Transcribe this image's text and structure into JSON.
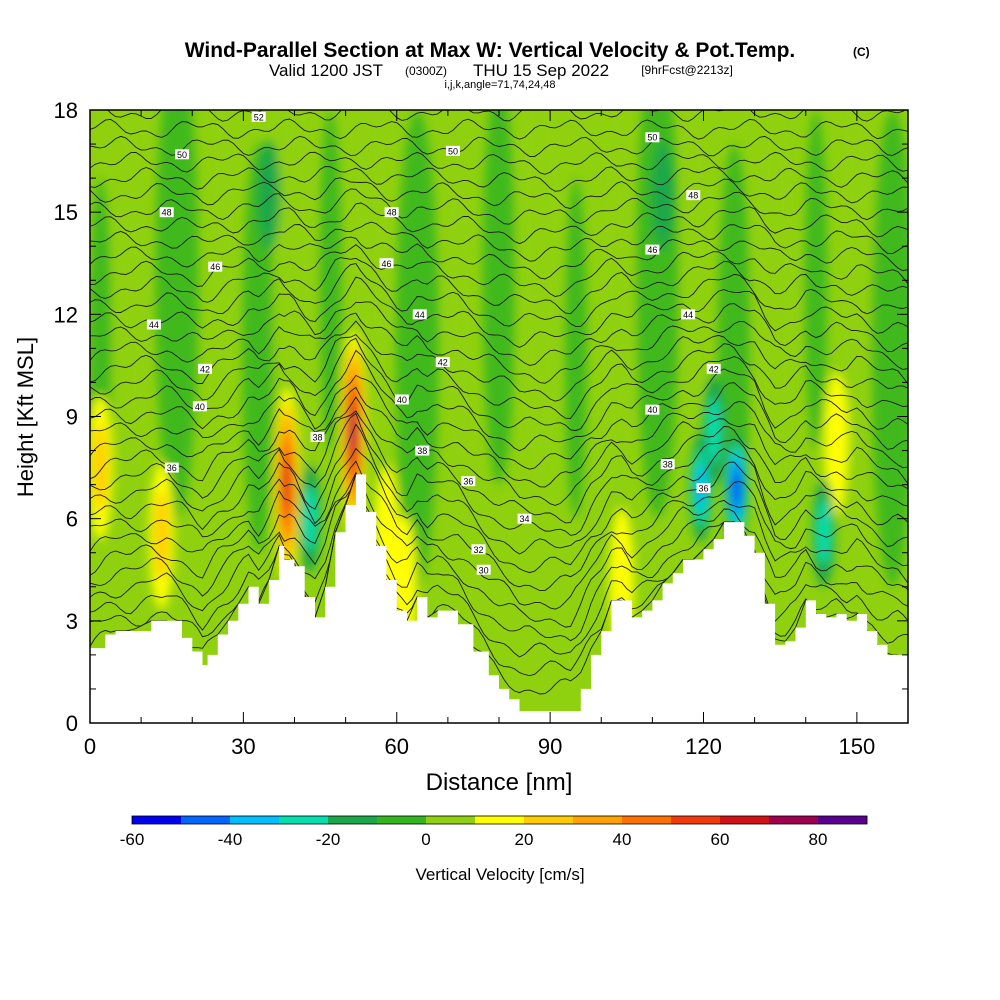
{
  "header": {
    "title": "Wind-Parallel Section at Max W: Vertical Velocity & Pot.Temp.",
    "title_units": "(C)",
    "valid_prefix": "Valid 1200 JST",
    "valid_utc": "(0300Z)",
    "valid_date": "THU 15 Sep 2022",
    "forecast": "[9hrFcst@2213z]",
    "indices": "i,j,k,angle=71,74,24,48"
  },
  "chart_data": {
    "type": "heatmap",
    "xlabel": "Distance [nm]",
    "ylabel": "Height [Kft MSL]",
    "xlim": [
      0,
      160
    ],
    "ylim": [
      0,
      18
    ],
    "x_ticks": [
      "0",
      "30",
      "60",
      "90",
      "120",
      "150"
    ],
    "x_tick_values": [
      0,
      30,
      60,
      90,
      120,
      150
    ],
    "y_ticks": [
      "0",
      "3",
      "6",
      "9",
      "12",
      "15",
      "18"
    ],
    "y_tick_values": [
      0,
      3,
      6,
      9,
      12,
      15,
      18
    ],
    "colorbar": {
      "label": "Vertical Velocity [cm/s]",
      "tick_labels": [
        "-60",
        "-40",
        "-20",
        "0",
        "20",
        "40",
        "60",
        "80"
      ],
      "tick_values": [
        -60,
        -40,
        -20,
        0,
        20,
        40,
        60,
        80
      ],
      "levels": [
        -60,
        -50,
        -40,
        -30,
        -20,
        -10,
        0,
        10,
        20,
        30,
        40,
        50,
        60,
        70,
        80,
        90
      ],
      "colors": [
        "#0000f0",
        "#0066ff",
        "#00bfff",
        "#00e0b0",
        "#1aa84a",
        "#33b520",
        "#8fd10e",
        "#ffff00",
        "#ffcc00",
        "#ffa200",
        "#ff7000",
        "#f03a0a",
        "#d21018",
        "#a00050",
        "#5a0090"
      ]
    },
    "terrain_kft": {
      "x": [
        0,
        3,
        5,
        8,
        12,
        15,
        18,
        20,
        22,
        23,
        25,
        27,
        29,
        31,
        33,
        35,
        37,
        38,
        39,
        40,
        42,
        44,
        46,
        48,
        50,
        52,
        54,
        56,
        58,
        60,
        62,
        64,
        66,
        68,
        72,
        75,
        78,
        80,
        82,
        84,
        86,
        88,
        90,
        92,
        94,
        96,
        98,
        100,
        102,
        104,
        106,
        108,
        110,
        112,
        114,
        116,
        118,
        120,
        122,
        124,
        126,
        128,
        130,
        132,
        134,
        136,
        138,
        140,
        142,
        144,
        146,
        148,
        150,
        152,
        154,
        156,
        158,
        160
      ],
      "h": [
        2.2,
        2.6,
        2.7,
        2.7,
        3.0,
        3.0,
        2.5,
        2.1,
        1.7,
        2.0,
        2.6,
        3.0,
        3.5,
        4.0,
        3.5,
        4.2,
        5.2,
        4.8,
        4.8,
        4.6,
        3.7,
        3.1,
        4.0,
        5.6,
        6.4,
        7.3,
        6.2,
        5.2,
        4.2,
        3.3,
        3.0,
        3.7,
        3.1,
        3.3,
        2.9,
        2.1,
        1.4,
        1.0,
        0.7,
        0.35,
        0.35,
        0.35,
        0.35,
        0.35,
        0.35,
        1.0,
        2.0,
        2.7,
        3.6,
        3.6,
        3.1,
        3.3,
        3.6,
        4.1,
        4.4,
        4.8,
        4.8,
        5.1,
        5.4,
        5.9,
        5.9,
        5.5,
        5.0,
        3.5,
        2.3,
        2.4,
        2.8,
        3.6,
        3.2,
        3.1,
        3.2,
        3.0,
        3.2,
        2.7,
        2.3,
        2.0,
        2.0,
        1.7
      ]
    },
    "updraft_cores": [
      {
        "x": 51.5,
        "z": 8.5,
        "peak_cm_s": 72
      },
      {
        "x": 38.5,
        "z": 7.0,
        "peak_cm_s": 62
      },
      {
        "x": 14.0,
        "z": 5.5,
        "peak_cm_s": 22
      },
      {
        "x": 2.0,
        "z": 7.5,
        "peak_cm_s": 20
      },
      {
        "x": 146.0,
        "z": 8.2,
        "peak_cm_s": 18
      },
      {
        "x": 104.0,
        "z": 4.2,
        "peak_cm_s": 18
      },
      {
        "x": 61.5,
        "z": 4.0,
        "peak_cm_s": 18
      },
      {
        "x": 58.0,
        "z": 5.5,
        "peak_cm_s": 16
      }
    ],
    "downdraft_cores": [
      {
        "x": 126.5,
        "z": 6.9,
        "min_cm_s": -50
      },
      {
        "x": 119.5,
        "z": 6.9,
        "min_cm_s": -30
      },
      {
        "x": 143.5,
        "z": 5.6,
        "min_cm_s": -25
      },
      {
        "x": 43.0,
        "z": 6.0,
        "min_cm_s": -25
      },
      {
        "x": 122.0,
        "z": 8.6,
        "min_cm_s": -20
      },
      {
        "x": 35.0,
        "z": 15.5,
        "min_cm_s": -15
      },
      {
        "x": 112.0,
        "z": 15.5,
        "min_cm_s": -15
      }
    ],
    "theta_contour_labels": [
      {
        "text": "52",
        "x": 33,
        "z": 17.8
      },
      {
        "text": "50",
        "x": 18,
        "z": 16.7
      },
      {
        "text": "50",
        "x": 71,
        "z": 16.8
      },
      {
        "text": "50",
        "x": 110,
        "z": 17.2
      },
      {
        "text": "48",
        "x": 15,
        "z": 15.0
      },
      {
        "text": "48",
        "x": 59,
        "z": 15.0
      },
      {
        "text": "48",
        "x": 118,
        "z": 15.5
      },
      {
        "text": "46",
        "x": 24.5,
        "z": 13.4
      },
      {
        "text": "46",
        "x": 58,
        "z": 13.5
      },
      {
        "text": "46",
        "x": 110,
        "z": 13.9
      },
      {
        "text": "44",
        "x": 12.5,
        "z": 11.7
      },
      {
        "text": "44",
        "x": 64.5,
        "z": 12.0
      },
      {
        "text": "44",
        "x": 117,
        "z": 12.0
      },
      {
        "text": "42",
        "x": 22.5,
        "z": 10.4
      },
      {
        "text": "42",
        "x": 69,
        "z": 10.6
      },
      {
        "text": "42",
        "x": 122,
        "z": 10.4
      },
      {
        "text": "40",
        "x": 21.5,
        "z": 9.3
      },
      {
        "text": "40",
        "x": 61,
        "z": 9.5
      },
      {
        "text": "40",
        "x": 110,
        "z": 9.2
      },
      {
        "text": "38",
        "x": 44.5,
        "z": 8.4
      },
      {
        "text": "38",
        "x": 65,
        "z": 8.0
      },
      {
        "text": "38",
        "x": 113,
        "z": 7.6
      },
      {
        "text": "36",
        "x": 16,
        "z": 7.5
      },
      {
        "text": "36",
        "x": 74,
        "z": 7.1
      },
      {
        "text": "36",
        "x": 120,
        "z": 6.9
      },
      {
        "text": "34",
        "x": 85,
        "z": 6.0
      },
      {
        "text": "32",
        "x": 76,
        "z": 5.1
      },
      {
        "text": "30",
        "x": 77,
        "z": 4.5
      }
    ]
  }
}
